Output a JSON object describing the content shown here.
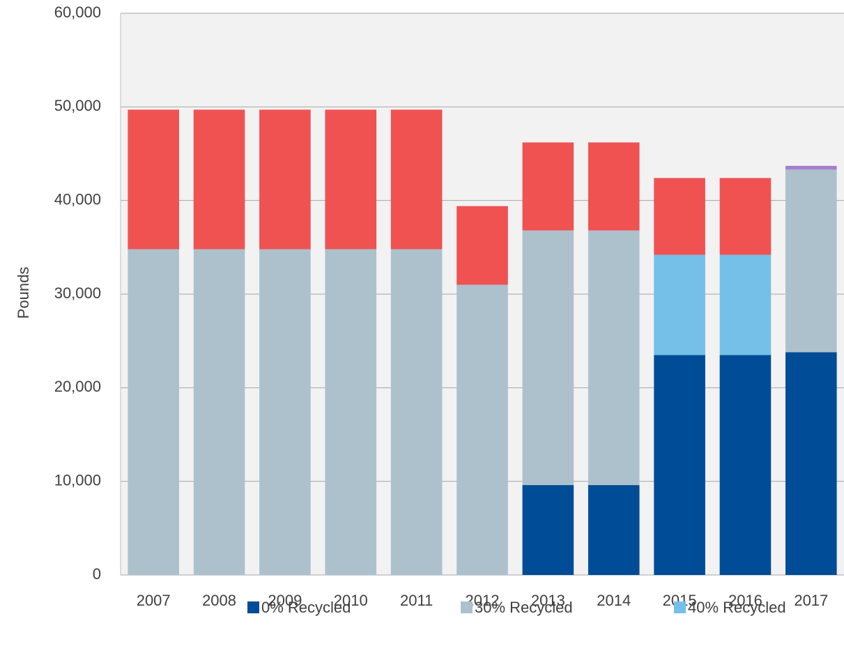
{
  "chart_data": {
    "type": "bar",
    "stacked": true,
    "y_label": "Pounds",
    "categories": [
      "2007",
      "2008",
      "2009",
      "2010",
      "2011",
      "2012",
      "2013",
      "2014",
      "2015",
      "2016",
      "2017"
    ],
    "series": [
      {
        "name": "0% Recycled",
        "color": "#004c97",
        "values": [
          0,
          0,
          0,
          0,
          0,
          0,
          9600,
          9600,
          23500,
          23500,
          23800
        ]
      },
      {
        "name": "30% Recycled",
        "color": "#adc1cd",
        "values": [
          34800,
          34800,
          34800,
          34800,
          34800,
          31000,
          27200,
          27200,
          0,
          0,
          19500
        ]
      },
      {
        "name": "40% Recycled",
        "color": "#74c0e8",
        "values": [
          0,
          0,
          0,
          0,
          0,
          0,
          0,
          0,
          10700,
          10700,
          0
        ]
      },
      {
        "color": "#f05252",
        "values": [
          14900,
          14900,
          14900,
          14900,
          14900,
          8400,
          9400,
          9400,
          8200,
          8200,
          0
        ]
      },
      {
        "color": "#a67fd0",
        "values": [
          0,
          0,
          0,
          0,
          0,
          0,
          0,
          0,
          0,
          0,
          400
        ]
      }
    ],
    "ylim": [
      0,
      60000
    ],
    "yticks": [
      0,
      {
        "value": 10000,
        "label": "10,000"
      },
      {
        "value": 20000,
        "label": "20,000"
      },
      {
        "value": 30000,
        "label": "30,000"
      },
      {
        "value": 40000,
        "label": "40,000"
      },
      {
        "value": 50000,
        "label": "50,000"
      },
      {
        "value": 60000,
        "label": "60,000"
      }
    ],
    "grid": true
  }
}
